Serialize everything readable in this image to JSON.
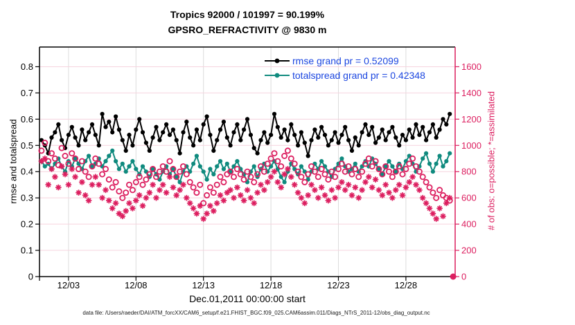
{
  "chart_data": {
    "type": "line",
    "title_line1": "Tropics 92000 / 101997 = 90.199%",
    "title_line2": "GPSRO_REFRACTIVITY @ 9830 m",
    "xlabel": "Dec.01,2011 00:00:00 start",
    "ylabel_left": "rmse and totalspread",
    "ylabel_right": "# of obs: o=possible; *=assimilated",
    "footer": "data file: /Users/raeder/DAI/ATM_forcXX/CAM6_setup/f.e21.FHIST_BGC.f09_025.CAM6assim.011/Diags_NTrS_2011-12/obs_diag_output.nc",
    "legend": [
      {
        "name": "rmse",
        "label": "rmse grand pr = 0.52099"
      },
      {
        "name": "totalspread",
        "label": "totalspread grand pr = 0.42348"
      }
    ],
    "grand_pr": {
      "rmse": 0.52099,
      "totalspread": 0.42348
    },
    "xlim": [
      -0.15,
      30.65
    ],
    "ylim_left": [
      0,
      0.875
    ],
    "ylim_right": [
      0,
      1750
    ],
    "yticks_left": [
      0,
      0.1,
      0.2,
      0.3,
      0.4,
      0.5,
      0.6,
      0.7,
      0.8
    ],
    "yticks_right": [
      0,
      200,
      400,
      600,
      800,
      1000,
      1200,
      1400,
      1600
    ],
    "x_ticks": [
      {
        "day": 2,
        "label": "12/03"
      },
      {
        "day": 7,
        "label": "12/08"
      },
      {
        "day": 12,
        "label": "12/13"
      },
      {
        "day": 17,
        "label": "12/18"
      },
      {
        "day": 22,
        "label": "12/23"
      },
      {
        "day": 27,
        "label": "12/28"
      }
    ],
    "grid": true,
    "x_start": 0,
    "x_step": 0.25,
    "colors": {
      "rmse": "#000000",
      "totalspread": "#0F8A7E",
      "obs": "#DC1E5F",
      "legend_text": "#1B46E0",
      "grid_h": "#F6D3DE",
      "grid_v": "#DCDCDC",
      "axis": "#000000"
    },
    "series": [
      {
        "name": "rmse",
        "axis": "left",
        "style": "line-filled-circle",
        "values": [
          0.52,
          0.5,
          0.47,
          0.53,
          0.55,
          0.58,
          0.52,
          0.49,
          0.54,
          0.57,
          0.53,
          0.5,
          0.56,
          0.52,
          0.55,
          0.58,
          0.54,
          0.5,
          0.62,
          0.57,
          0.59,
          0.55,
          0.61,
          0.56,
          0.52,
          0.48,
          0.54,
          0.5,
          0.56,
          0.6,
          0.55,
          0.51,
          0.48,
          0.53,
          0.57,
          0.52,
          0.55,
          0.58,
          0.54,
          0.56,
          0.52,
          0.47,
          0.55,
          0.59,
          0.53,
          0.5,
          0.56,
          0.52,
          0.58,
          0.61,
          0.54,
          0.48,
          0.52,
          0.56,
          0.59,
          0.53,
          0.5,
          0.55,
          0.58,
          0.52,
          0.56,
          0.6,
          0.54,
          0.49,
          0.47,
          0.52,
          0.55,
          0.51,
          0.54,
          0.62,
          0.57,
          0.53,
          0.56,
          0.52,
          0.58,
          0.54,
          0.5,
          0.55,
          0.51,
          0.46,
          0.52,
          0.56,
          0.53,
          0.57,
          0.54,
          0.5,
          0.52,
          0.55,
          0.51,
          0.54,
          0.57,
          0.52,
          0.48,
          0.53,
          0.5,
          0.55,
          0.58,
          0.54,
          0.57,
          0.51,
          0.53,
          0.56,
          0.52,
          0.55,
          0.57,
          0.53,
          0.5,
          0.54,
          0.52,
          0.56,
          0.53,
          0.58,
          0.54,
          0.57,
          0.52,
          0.55,
          0.58,
          0.53,
          0.56,
          0.6,
          0.58,
          0.62,
          null
        ]
      },
      {
        "name": "totalspread",
        "axis": "left",
        "style": "line-filled-circle",
        "values": [
          0.44,
          0.42,
          0.43,
          0.41,
          0.43,
          0.45,
          0.42,
          0.4,
          0.44,
          0.42,
          0.45,
          0.43,
          0.41,
          0.44,
          0.46,
          0.42,
          0.43,
          0.45,
          0.42,
          0.44,
          0.46,
          0.48,
          0.44,
          0.41,
          0.43,
          0.4,
          0.42,
          0.44,
          0.41,
          0.39,
          0.42,
          0.4,
          0.38,
          0.41,
          0.39,
          0.37,
          0.4,
          0.42,
          0.39,
          0.41,
          0.38,
          0.36,
          0.4,
          0.42,
          0.4,
          0.43,
          0.46,
          0.42,
          0.4,
          0.37,
          0.41,
          0.39,
          0.42,
          0.44,
          0.41,
          0.43,
          0.4,
          0.42,
          0.44,
          0.41,
          0.39,
          0.36,
          0.4,
          0.42,
          0.38,
          0.41,
          0.43,
          0.4,
          0.42,
          0.44,
          0.41,
          0.38,
          0.36,
          0.4,
          0.43,
          0.41,
          0.39,
          0.42,
          0.4,
          0.37,
          0.4,
          0.43,
          0.41,
          0.44,
          0.42,
          0.4,
          0.38,
          0.41,
          0.43,
          0.45,
          0.42,
          0.4,
          0.41,
          0.43,
          0.4,
          0.42,
          0.44,
          0.42,
          0.45,
          0.43,
          0.41,
          0.39,
          0.42,
          0.44,
          0.42,
          0.4,
          0.43,
          0.41,
          0.44,
          0.46,
          0.43,
          0.4,
          0.42,
          0.45,
          0.47,
          0.43,
          0.4,
          0.43,
          0.46,
          0.42,
          0.44,
          0.47,
          null
        ]
      },
      {
        "name": "possible",
        "axis": "right",
        "style": "open-circle",
        "values": [
          960,
          1020,
          880,
          940,
          900,
          850,
          980,
          920,
          860,
          940,
          900,
          820,
          880,
          800,
          760,
          840,
          900,
          860,
          780,
          820,
          740,
          680,
          720,
          650,
          600,
          640,
          700,
          660,
          720,
          760,
          700,
          740,
          780,
          820,
          760,
          800,
          840,
          800,
          880,
          820,
          760,
          800,
          840,
          780,
          720,
          680,
          640,
          700,
          560,
          620,
          680,
          640,
          700,
          760,
          720,
          780,
          800,
          760,
          820,
          780,
          740,
          800,
          760,
          720,
          780,
          840,
          800,
          860,
          900,
          940,
          880,
          840,
          920,
          960,
          900,
          860,
          800,
          760,
          720,
          780,
          840,
          800,
          760,
          820,
          780,
          740,
          800,
          760,
          820,
          860,
          800,
          840,
          780,
          820,
          760,
          800,
          860,
          900,
          840,
          880,
          820,
          780,
          840,
          800,
          760,
          800,
          840,
          780,
          820,
          860,
          900,
          840,
          800,
          760,
          720,
          680,
          640,
          600,
          660,
          620,
          600,
          580,
          0
        ]
      },
      {
        "name": "assimilated",
        "axis": "right",
        "style": "asterisk",
        "values": [
          880,
          900,
          700,
          820,
          760,
          680,
          840,
          780,
          700,
          820,
          760,
          640,
          720,
          620,
          580,
          700,
          760,
          700,
          600,
          660,
          580,
          520,
          560,
          480,
          460,
          500,
          560,
          520,
          580,
          620,
          540,
          600,
          640,
          700,
          600,
          660,
          700,
          640,
          760,
          680,
          620,
          660,
          700,
          600,
          560,
          520,
          480,
          540,
          440,
          480,
          540,
          500,
          560,
          620,
          580,
          640,
          660,
          600,
          680,
          620,
          580,
          660,
          600,
          560,
          640,
          700,
          660,
          720,
          760,
          800,
          720,
          680,
          780,
          820,
          760,
          700,
          640,
          600,
          560,
          620,
          700,
          660,
          600,
          680,
          620,
          580,
          660,
          600,
          680,
          720,
          660,
          700,
          620,
          680,
          600,
          660,
          720,
          760,
          680,
          740,
          660,
          620,
          700,
          640,
          600,
          660,
          700,
          620,
          680,
          720,
          760,
          700,
          660,
          600,
          560,
          520,
          480,
          440,
          520,
          460,
          560,
          600,
          0
        ]
      }
    ]
  }
}
